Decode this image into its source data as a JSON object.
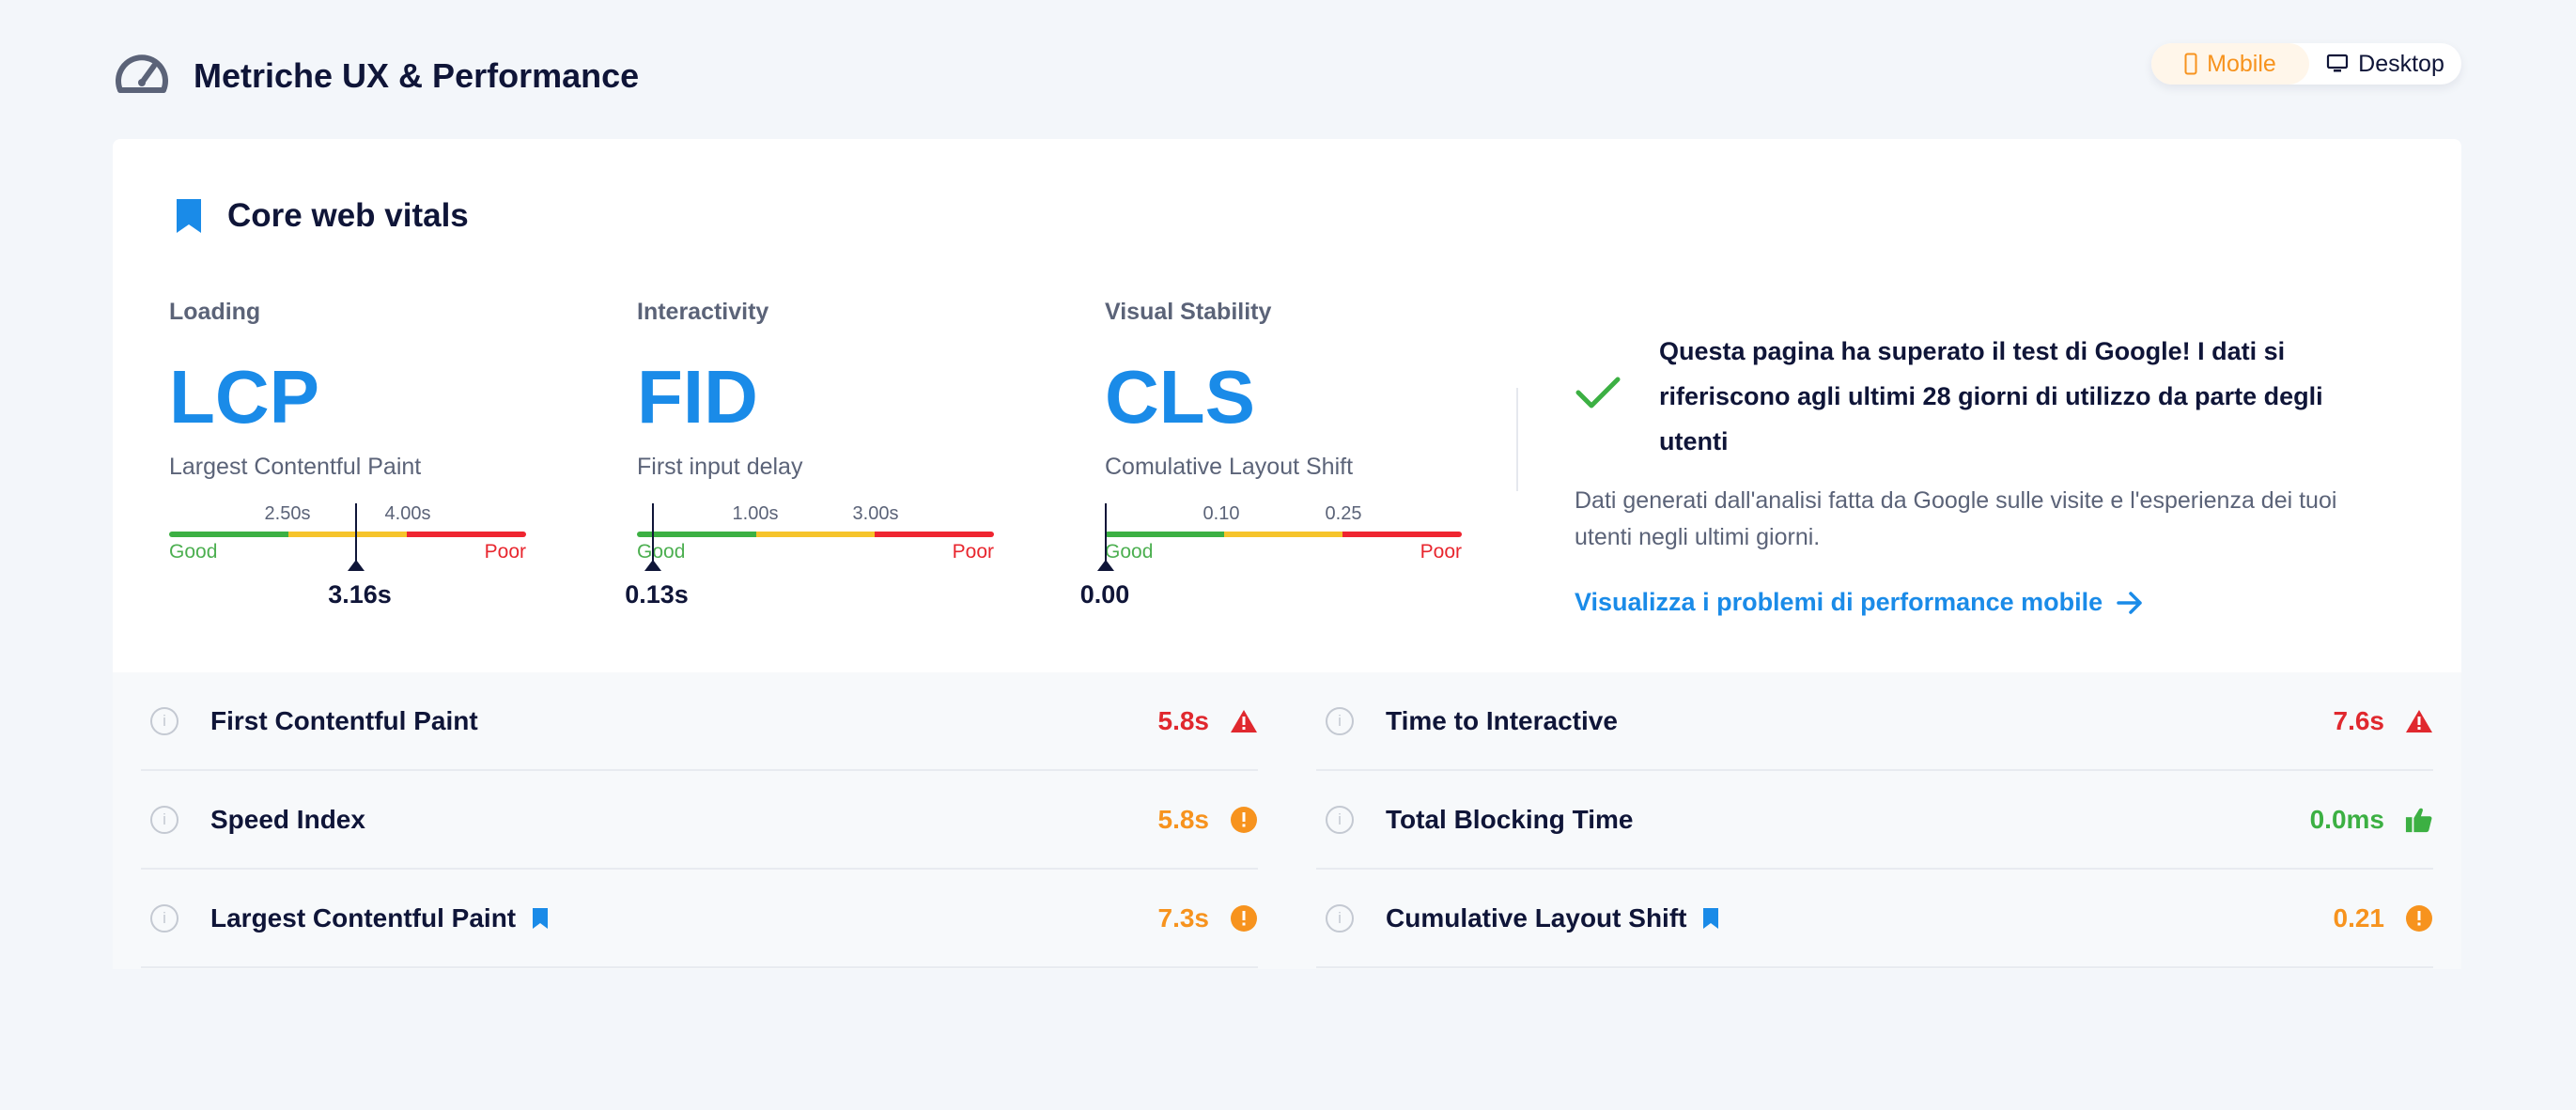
{
  "header": {
    "title": "Metriche UX & Performance"
  },
  "device_toggle": {
    "mobile_label": "Mobile",
    "desktop_label": "Desktop",
    "selected": "Mobile",
    "active_color": "#f7931e"
  },
  "cwv": {
    "title": "Core web vitals",
    "metrics": [
      {
        "category": "Loading",
        "abbr": "LCP",
        "full": "Largest Contentful Paint",
        "t1": "2.50s",
        "t2": "4.00s",
        "good": "Good",
        "poor": "Poor",
        "value": "3.16s"
      },
      {
        "category": "Interactivity",
        "abbr": "FID",
        "full": "First input delay",
        "t1": "1.00s",
        "t2": "3.00s",
        "good": "Good",
        "poor": "Poor",
        "value": "0.13s"
      },
      {
        "category": "Visual Stability",
        "abbr": "CLS",
        "full": "Comulative Layout Shift",
        "t1": "0.10",
        "t2": "0.25",
        "good": "Good",
        "poor": "Poor",
        "value": "0.00"
      }
    ],
    "passed": {
      "message": "Questa pagina ha superato il test di Google! I dati si riferiscono agli ultimi 28 giorni di utilizzo da parte degli utenti",
      "description": "Dati generati dall'analisi fatta da Google sulle visite e l'esperienza dei tuoi utenti negli ultimi giorni.",
      "link": "Visualizza i problemi di performance mobile"
    }
  },
  "table": {
    "left": [
      {
        "name": "First Contentful Paint",
        "value": "5.8s",
        "status": "warning-triangle"
      },
      {
        "name": "Speed Index",
        "value": "5.8s",
        "status": "alert-circle"
      },
      {
        "name": "Largest Contentful Paint",
        "value": "7.3s",
        "status": "alert-circle",
        "bookmark": true
      }
    ],
    "right": [
      {
        "name": "Time to Interactive",
        "value": "7.6s",
        "status": "warning-triangle"
      },
      {
        "name": "Total Blocking Time",
        "value": "0.0ms",
        "status": "thumbs-up"
      },
      {
        "name": "Cumulative Layout Shift",
        "value": "0.21",
        "status": "alert-circle",
        "bookmark": true
      }
    ]
  },
  "colors": {
    "accent_blue": "#1a8be8",
    "good": "#3cb043",
    "average": "#f6c42b",
    "poor": "#ef2530",
    "warning_orange": "#f7931e"
  }
}
